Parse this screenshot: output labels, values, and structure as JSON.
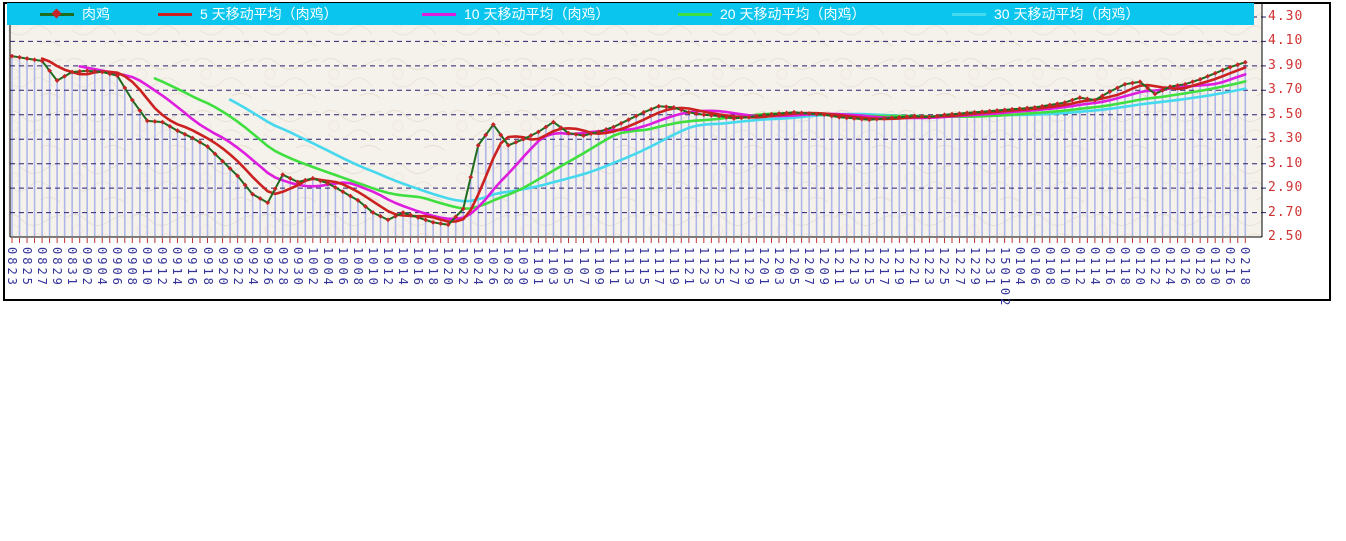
{
  "legend": {
    "background": "#0AC6EF",
    "text_color": "#FFFFFF"
  },
  "chart_data": {
    "type": "line",
    "title": "",
    "categories": [
      "0823",
      "0825",
      "0827",
      "0829",
      "0831",
      "0902",
      "0904",
      "0906",
      "0908",
      "0910",
      "0912",
      "0914",
      "0916",
      "0918",
      "0920",
      "0922",
      "0924",
      "0926",
      "0928",
      "0930",
      "1002",
      "1004",
      "1006",
      "1008",
      "1010",
      "1012",
      "1014",
      "1016",
      "1018",
      "1020",
      "1022",
      "1024",
      "1026",
      "1028",
      "1030",
      "1101",
      "1103",
      "1105",
      "1107",
      "1109",
      "1111",
      "1113",
      "1115",
      "1117",
      "1119",
      "1121",
      "1123",
      "1125",
      "1127",
      "1129",
      "1201",
      "1203",
      "1205",
      "1207",
      "1209",
      "1211",
      "1213",
      "1215",
      "1217",
      "1219",
      "1221",
      "1223",
      "1225",
      "1227",
      "1229",
      "1231",
      "150102",
      "0104",
      "0106",
      "0108",
      "0110",
      "0112",
      "0114",
      "0116",
      "0118",
      "0120",
      "0122",
      "0124",
      "0126",
      "0128",
      "0130",
      "0216",
      "0218"
    ],
    "main_series": {
      "name": "肉鸡",
      "values": [
        3.98,
        3.96,
        3.94,
        3.78,
        3.85,
        3.86,
        3.85,
        3.82,
        3.62,
        3.45,
        3.44,
        3.37,
        3.31,
        3.24,
        3.12,
        3.0,
        2.85,
        2.78,
        3.01,
        2.95,
        2.98,
        2.94,
        2.87,
        2.8,
        2.7,
        2.64,
        2.7,
        2.66,
        2.62,
        2.6,
        2.73,
        3.25,
        3.42,
        3.25,
        3.3,
        3.36,
        3.44,
        3.35,
        3.33,
        3.36,
        3.4,
        3.46,
        3.52,
        3.57,
        3.56,
        3.52,
        3.5,
        3.49,
        3.47,
        3.48,
        3.5,
        3.51,
        3.52,
        3.51,
        3.5,
        3.48,
        3.47,
        3.46,
        3.47,
        3.48,
        3.49,
        3.48,
        3.5,
        3.51,
        3.52,
        3.53,
        3.54,
        3.55,
        3.56,
        3.58,
        3.6,
        3.64,
        3.62,
        3.69,
        3.75,
        3.77,
        3.67,
        3.73,
        3.75,
        3.79,
        3.84,
        3.89,
        3.93
      ],
      "color": "#1F6B1F",
      "marker_color": "#C52428"
    },
    "ma_series": [
      {
        "name": "5 天移动平均（肉鸡）",
        "window": 5,
        "color": "#CB2121"
      },
      {
        "name": "10 天移动平均（肉鸡）",
        "window": 10,
        "color": "#DE1EDE"
      },
      {
        "name": "20 天移动平均（肉鸡）",
        "window": 20,
        "color": "#3FDF3F"
      },
      {
        "name": "30 天移动平均（肉鸡）",
        "window": 30,
        "color": "#46D9EE"
      }
    ],
    "y_axis": {
      "min": 2.5,
      "max": 4.3,
      "tick_step": 0.2,
      "tick_labels": [
        "4.30",
        "4.10",
        "3.90",
        "3.70",
        "3.50",
        "3.30",
        "3.10",
        "2.90",
        "2.70",
        "2.50"
      ],
      "label_color": "#D03232"
    },
    "x_axis": {
      "label_color": "#34349A",
      "tick_color": "#C03030",
      "note": "labels every 2 days, one tick and drop-line per day"
    },
    "colors": {
      "plot_background": "#F5F1EB",
      "texture": "#E9E1D5",
      "gridline": "#2B2070",
      "dropline": "#AFB6EA",
      "frame_border": "#000000"
    },
    "grid": "horizontal dashed lines at each 0.20 level; vertical periwinkle drop lines from each daily price point",
    "legend_position": "top bar"
  }
}
